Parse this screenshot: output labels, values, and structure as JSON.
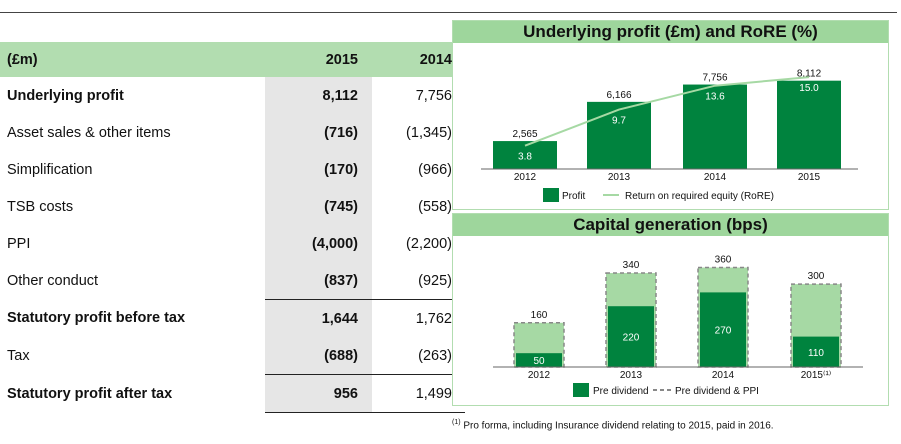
{
  "table": {
    "headers": [
      "(£m)",
      "2015",
      "2014"
    ],
    "rows": [
      {
        "label": "Underlying profit",
        "v2015": "8,112",
        "v2014": "7,756",
        "bold": true
      },
      {
        "label": "Asset sales & other items",
        "v2015": "(716)",
        "v2014": "(1,345)"
      },
      {
        "label": "Simplification",
        "v2015": "(170)",
        "v2014": "(966)"
      },
      {
        "label": "TSB costs",
        "v2015": "(745)",
        "v2014": "(558)"
      },
      {
        "label": "PPI",
        "v2015": "(4,000)",
        "v2014": "(2,200)"
      },
      {
        "label": "Other conduct",
        "v2015": "(837)",
        "v2014": "(925)"
      },
      {
        "label": "Statutory profit before tax",
        "v2015": "1,644",
        "v2014": "1,762",
        "bold": true
      },
      {
        "label": "Tax",
        "v2015": "(688)",
        "v2014": "(263)"
      },
      {
        "label": "Statutory profit after tax",
        "v2015": "956",
        "v2014": "1,499",
        "bold": true
      }
    ]
  },
  "chart_data": [
    {
      "type": "bar",
      "title": "Underlying profit (£m) and RoRE (%)",
      "categories": [
        "2012",
        "2013",
        "2014",
        "2015"
      ],
      "series": [
        {
          "name": "Profit",
          "kind": "bar",
          "values": [
            2565,
            6166,
            7756,
            8112
          ],
          "labels": [
            "2,565",
            "6,166",
            "7,756",
            "8,112"
          ]
        },
        {
          "name": "Return on required equity (RoRE)",
          "kind": "line",
          "values": [
            3.8,
            9.7,
            13.6,
            15.0
          ],
          "labels": [
            "3.8",
            "9.7",
            "13.6",
            "15.0"
          ]
        }
      ],
      "ylim": [
        0,
        9000
      ],
      "line_ylim": [
        0,
        16
      ],
      "legend": "bottom",
      "colors": {
        "bar": "#00833e",
        "line": "#a6d9a4"
      }
    },
    {
      "type": "bar",
      "title": "Capital generation (bps)",
      "categories": [
        "2012",
        "2013",
        "2014",
        "2015⁽¹⁾"
      ],
      "series": [
        {
          "name": "Pre dividend",
          "values": [
            50,
            220,
            270,
            110
          ]
        },
        {
          "name": "Pre dividend & PPI",
          "values": [
            160,
            340,
            360,
            300
          ],
          "style": "dashed"
        }
      ],
      "ylim": [
        0,
        380
      ],
      "legend": "bottom",
      "colors": {
        "inner": "#00833e",
        "outer": "#a6d9a4",
        "outline": "#888888"
      }
    }
  ],
  "footnote": {
    "mark": "(1)",
    "text": "Pro forma, including Insurance dividend relating to 2015, paid in 2016."
  }
}
